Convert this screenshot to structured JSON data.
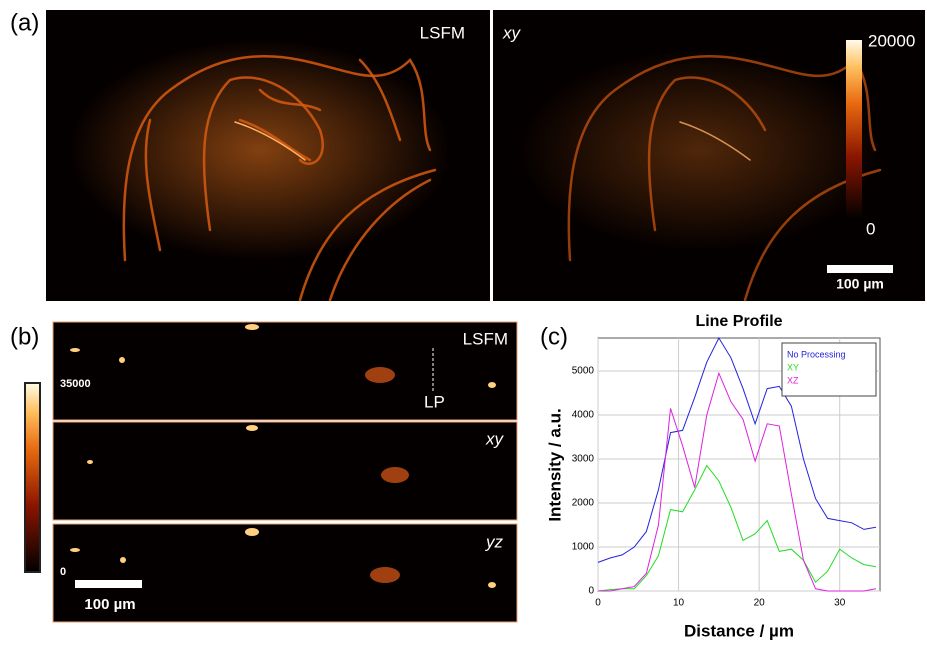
{
  "panel_a": {
    "label": "(a)",
    "left_title": "LSFM",
    "right_title": "xy",
    "colorbar_max": "20000",
    "colorbar_min": "0",
    "scale_bar": "100 µm"
  },
  "panel_b": {
    "label": "(b)",
    "titles": [
      "LSFM",
      "xy",
      "yz"
    ],
    "line_label": "LP",
    "colorbar_max": "35000",
    "colorbar_min": "0",
    "scale_bar": "100 µm"
  },
  "panel_c": {
    "label": "(c)"
  },
  "chart_data": {
    "type": "line",
    "title": "Line Profile",
    "x_label": "Distance / µm",
    "y_label": "Intensity / a.u.",
    "x": [
      0,
      1.5,
      3,
      4.5,
      6,
      7.5,
      9,
      10.5,
      12,
      13.5,
      15,
      16.5,
      18,
      19.5,
      21,
      22.5,
      24,
      25.5,
      27,
      28.5,
      30,
      31.5,
      33,
      34.5
    ],
    "series": [
      {
        "name": "No Processing",
        "color": "#2222dd",
        "values": [
          650,
          750,
          820,
          1000,
          1350,
          2300,
          3600,
          3650,
          4400,
          5200,
          5750,
          5300,
          4600,
          3800,
          4600,
          4650,
          4200,
          3000,
          2100,
          1650,
          1600,
          1550,
          1400,
          1450
        ]
      },
      {
        "name": "XY",
        "color": "#22dd22",
        "values": [
          0,
          30,
          50,
          50,
          350,
          800,
          1850,
          1800,
          2300,
          2850,
          2500,
          1900,
          1150,
          1300,
          1600,
          900,
          950,
          700,
          200,
          450,
          950,
          750,
          600,
          550
        ]
      },
      {
        "name": "XZ",
        "color": "#dd22dd",
        "values": [
          0,
          0,
          50,
          100,
          400,
          1500,
          4150,
          3300,
          2350,
          4000,
          4950,
          4300,
          3900,
          2950,
          3800,
          3750,
          2200,
          700,
          50,
          0,
          0,
          0,
          0,
          50
        ]
      }
    ],
    "xlim": [
      0,
      35
    ],
    "xticks": [
      0,
      10,
      20,
      30
    ],
    "ylim": [
      0,
      5750
    ],
    "yticks": [
      0,
      1000,
      2000,
      3000,
      4000,
      5000
    ],
    "grid": true,
    "legend": "top-right"
  }
}
